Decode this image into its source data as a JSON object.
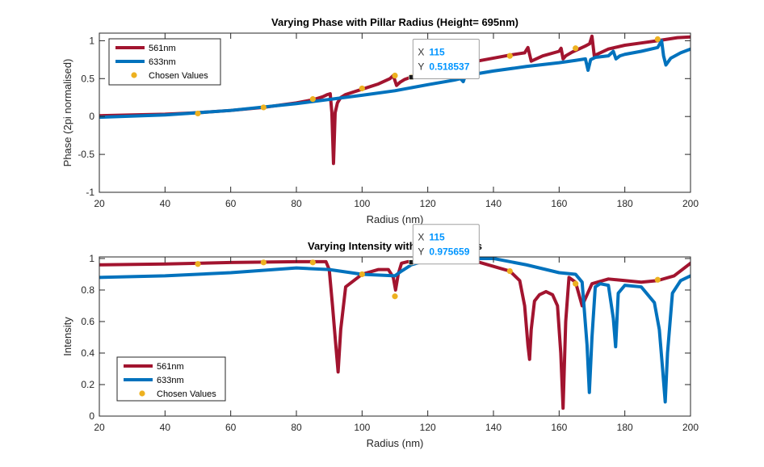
{
  "colors": {
    "s561": "#A2142F",
    "s633": "#0072BD",
    "chosen": "#EDB120",
    "axis": "#262626",
    "tip_value": "#0095ff"
  },
  "chart_data": [
    {
      "type": "line",
      "title": "Varying Phase with Pillar Radius (Height= 695nm)",
      "xlabel": "Radius (nm)",
      "ylabel": "Phase (2pi normalised)",
      "xlim": [
        20,
        200
      ],
      "ylim": [
        -1,
        1.1
      ],
      "xticks": [
        20,
        40,
        60,
        80,
        100,
        120,
        140,
        160,
        180,
        200
      ],
      "xtick_labels": [
        "20",
        "40",
        "60",
        "80",
        "100",
        "120",
        "140",
        "160",
        "180",
        "200"
      ],
      "yticks": [
        -1,
        -0.5,
        0,
        0.5,
        1
      ],
      "ytick_labels": [
        "-1",
        "-0.5",
        "0",
        "0.5",
        "1"
      ],
      "legend": {
        "placement": "top-left",
        "entries": [
          "561nm",
          "633nm",
          "Chosen Values"
        ]
      },
      "series": [
        {
          "name": "561nm",
          "kind": "line",
          "x": [
            20,
            30,
            40,
            50,
            60,
            70,
            80,
            85,
            88,
            89.5,
            90.3,
            90.8,
            91.3,
            91.8,
            92.5,
            93.5,
            95,
            100,
            105,
            108.5,
            109.5,
            110.5,
            111.5,
            113,
            115,
            120,
            125,
            130,
            135,
            140,
            145,
            148,
            149.5,
            150.5,
            151.5,
            155,
            160,
            160.6,
            161.2,
            162,
            164,
            166,
            168,
            169.3,
            170,
            170.7,
            171.5,
            175,
            180,
            185,
            190,
            193,
            196,
            200
          ],
          "y": [
            0.01,
            0.02,
            0.03,
            0.05,
            0.08,
            0.12,
            0.18,
            0.22,
            0.26,
            0.29,
            0.3,
            0.05,
            -0.62,
            0.05,
            0.18,
            0.25,
            0.29,
            0.36,
            0.43,
            0.5,
            0.54,
            0.41,
            0.45,
            0.49,
            0.52,
            0.59,
            0.64,
            0.69,
            0.73,
            0.77,
            0.81,
            0.83,
            0.84,
            0.91,
            0.73,
            0.8,
            0.86,
            0.9,
            0.76,
            0.8,
            0.85,
            0.89,
            0.93,
            0.96,
            1.06,
            0.8,
            0.82,
            0.89,
            0.94,
            0.97,
            1.0,
            1.02,
            1.04,
            1.05
          ]
        },
        {
          "name": "633nm",
          "kind": "line",
          "x": [
            20,
            40,
            60,
            80,
            100,
            110,
            120,
            128,
            130,
            130.8,
            131.6,
            133,
            140,
            150,
            160,
            165,
            168,
            168.8,
            169.6,
            171,
            175,
            176.5,
            177.3,
            178.5,
            180,
            185,
            190,
            191.2,
            191.8,
            192.5,
            194,
            197,
            200
          ],
          "y": [
            -0.01,
            0.02,
            0.08,
            0.17,
            0.28,
            0.34,
            0.42,
            0.48,
            0.5,
            0.46,
            0.56,
            0.55,
            0.6,
            0.66,
            0.71,
            0.74,
            0.76,
            0.61,
            0.75,
            0.78,
            0.8,
            0.86,
            0.76,
            0.8,
            0.82,
            0.86,
            0.91,
            1.0,
            0.8,
            0.68,
            0.77,
            0.84,
            0.89
          ]
        },
        {
          "name": "Chosen Values",
          "kind": "scatter",
          "x": [
            50,
            70,
            85,
            100,
            110,
            115,
            120,
            130,
            145,
            165,
            190
          ],
          "y": [
            0.04,
            0.12,
            0.23,
            0.37,
            0.54,
            0.52,
            0.58,
            0.68,
            0.8,
            0.9,
            1.02
          ]
        }
      ],
      "datatip": {
        "x_label": "X",
        "x_value": "115",
        "y_label": "Y",
        "y_value": "0.518537",
        "x": 115,
        "y": 0.518537
      }
    },
    {
      "type": "line",
      "title": "Varying Intensity with Pillar Radius",
      "xlabel": "Radius (nm)",
      "ylabel": "Intensity",
      "xlim": [
        20,
        200
      ],
      "ylim": [
        0,
        1.01
      ],
      "xticks": [
        20,
        40,
        60,
        80,
        100,
        120,
        140,
        160,
        180,
        200
      ],
      "xtick_labels": [
        "20",
        "40",
        "60",
        "80",
        "100",
        "120",
        "140",
        "160",
        "180",
        "200"
      ],
      "yticks": [
        0,
        0.2,
        0.4,
        0.6,
        0.8,
        1
      ],
      "ytick_labels": [
        "0",
        "0.2",
        "0.4",
        "0.6",
        "0.8",
        "1"
      ],
      "legend": {
        "placement": "bottom-left",
        "entries": [
          "561nm",
          "633nm",
          "Chosen Values"
        ]
      },
      "series": [
        {
          "name": "561nm",
          "kind": "line",
          "x": [
            20,
            40,
            60,
            80,
            89,
            90,
            91,
            92,
            92.7,
            93.5,
            95,
            100,
            105,
            108,
            109.5,
            110.2,
            111,
            112,
            114,
            116,
            120,
            125,
            130,
            135,
            140,
            145,
            148,
            149.5,
            150.5,
            151,
            151.5,
            152.5,
            154,
            156,
            158,
            159.5,
            160.5,
            161.2,
            162,
            163,
            165,
            167,
            170,
            175,
            180,
            185,
            190,
            195,
            200
          ],
          "y": [
            0.96,
            0.965,
            0.975,
            0.98,
            0.98,
            0.93,
            0.7,
            0.45,
            0.28,
            0.55,
            0.82,
            0.9,
            0.93,
            0.93,
            0.88,
            0.8,
            0.9,
            0.97,
            0.98,
            0.98,
            0.99,
            0.995,
            0.99,
            0.98,
            0.95,
            0.92,
            0.86,
            0.7,
            0.45,
            0.36,
            0.55,
            0.73,
            0.77,
            0.79,
            0.77,
            0.7,
            0.4,
            0.05,
            0.6,
            0.88,
            0.85,
            0.7,
            0.84,
            0.87,
            0.86,
            0.85,
            0.86,
            0.89,
            0.97
          ]
        },
        {
          "name": "633nm",
          "kind": "line",
          "x": [
            20,
            40,
            60,
            80,
            90,
            100,
            110,
            112,
            115,
            120,
            130,
            140,
            150,
            160,
            165,
            167,
            168.5,
            169.2,
            170,
            171,
            172.5,
            175,
            176.5,
            177.2,
            178,
            180,
            185,
            189,
            190.5,
            191.5,
            192.3,
            193,
            194.5,
            197,
            200
          ],
          "y": [
            0.88,
            0.89,
            0.91,
            0.94,
            0.93,
            0.9,
            0.89,
            0.92,
            0.96,
            0.99,
            1.0,
            1.0,
            0.96,
            0.91,
            0.9,
            0.85,
            0.45,
            0.15,
            0.5,
            0.82,
            0.84,
            0.83,
            0.62,
            0.44,
            0.78,
            0.83,
            0.82,
            0.72,
            0.55,
            0.3,
            0.09,
            0.4,
            0.78,
            0.86,
            0.89
          ]
        },
        {
          "name": "Chosen Values",
          "kind": "scatter",
          "x": [
            50,
            70,
            85,
            100,
            110,
            115,
            120,
            130,
            145,
            165,
            190
          ],
          "y": [
            0.965,
            0.975,
            0.975,
            0.9,
            0.76,
            0.975,
            0.99,
            0.985,
            0.92,
            0.84,
            0.865
          ]
        }
      ],
      "datatip": {
        "x_label": "X",
        "x_value": "115",
        "y_label": "Y",
        "y_value": "0.975659",
        "x": 115,
        "y": 0.975659
      }
    }
  ]
}
